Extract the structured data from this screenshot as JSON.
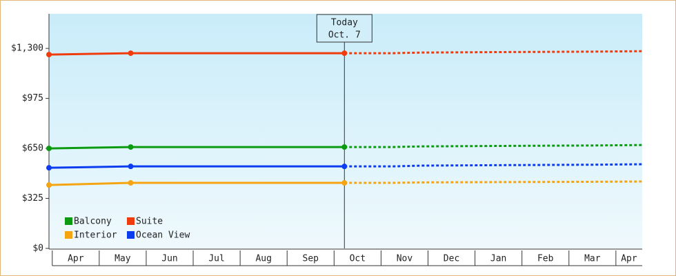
{
  "chart_data": {
    "type": "line",
    "x": [
      -0.07,
      1.67,
      6.22,
      7.25,
      7.85,
      9.45,
      11.5,
      12.56
    ],
    "xlim": [
      -0.07,
      12.56
    ],
    "xticks": [
      {
        "value": 0,
        "label": "Apr"
      },
      {
        "value": 1,
        "label": "May"
      },
      {
        "value": 2,
        "label": "Jun"
      },
      {
        "value": 3,
        "label": "Jul"
      },
      {
        "value": 4,
        "label": "Aug"
      },
      {
        "value": 5,
        "label": "Sep"
      },
      {
        "value": 6,
        "label": "Oct"
      },
      {
        "value": 7,
        "label": "Nov"
      },
      {
        "value": 8,
        "label": "Dec"
      },
      {
        "value": 9,
        "label": "Jan"
      },
      {
        "value": 10,
        "label": "Feb"
      },
      {
        "value": 11,
        "label": "Mar"
      },
      {
        "value": 12,
        "label": "Apr"
      }
    ],
    "ylim": [
      0,
      1525
    ],
    "yticks": [
      {
        "value": 0,
        "label": "$0"
      },
      {
        "value": 325,
        "label": "$325"
      },
      {
        "value": 650,
        "label": "$650"
      },
      {
        "value": 975,
        "label": "$975"
      },
      {
        "value": 1300,
        "label": "$1,300"
      }
    ],
    "today": {
      "x": 6.22,
      "lines": [
        "Today",
        "Oct. 7"
      ]
    },
    "series": [
      {
        "name": "Balcony",
        "color": "#0c9a10",
        "values": [
          650,
          659,
          659,
          659,
          663,
          666,
          669,
          672
        ]
      },
      {
        "name": "Suite",
        "color": "#f03c0c",
        "values": [
          1260,
          1269,
          1269,
          1269,
          1273,
          1276,
          1279,
          1282
        ]
      },
      {
        "name": "Interior",
        "color": "#f5a412",
        "values": [
          412,
          426,
          426,
          426,
          429,
          431,
          433,
          435
        ]
      },
      {
        "name": "Ocean View",
        "color": "#0c3cf0",
        "values": [
          524,
          533,
          533,
          533,
          538,
          541,
          544,
          547
        ]
      }
    ]
  }
}
